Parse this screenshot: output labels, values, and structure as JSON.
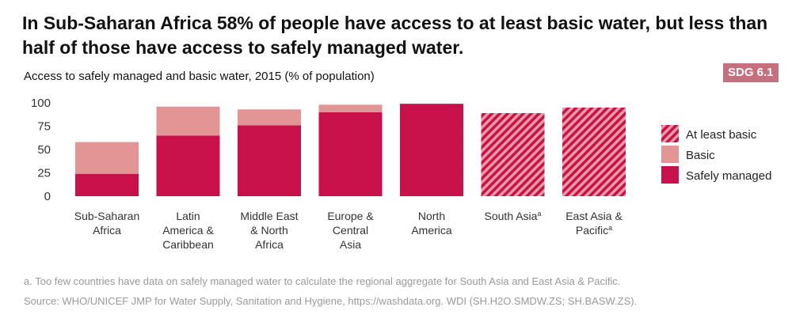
{
  "header": {
    "title": "In Sub-Saharan Africa 58% of people have access to at least basic water, but less than half of those have access to safely managed water.",
    "subtitle": "Access to safely managed and basic water, 2015 (% of population)",
    "badge": "SDG 6.1"
  },
  "footnotes": {
    "note_a": "a. Too few countries have data on safely managed water to calculate the regional aggregate for South Asia and East Asia & Pacific.",
    "source": "Source: WHO/UNICEF JMP for Water Supply, Sanitation and Hygiene, https://washdata.org. WDI (SH.H2O.SMDW.ZS; SH.BASW.ZS)."
  },
  "colors": {
    "safely_managed": "#c8114a",
    "basic": "#e39494",
    "hatch_light": "#e99aa3"
  },
  "chart_data": {
    "type": "bar",
    "stacked": true,
    "categories": [
      [
        "Sub-Saharan",
        "Africa"
      ],
      [
        "Latin",
        "America &",
        "Caribbean"
      ],
      [
        "Middle East",
        "& North",
        "Africa"
      ],
      [
        "Europe &",
        "Central",
        "Asia"
      ],
      [
        "North",
        "America"
      ],
      [
        "South Asia"
      ],
      [
        "East Asia &",
        "Pacific"
      ]
    ],
    "category_superscripts": [
      "",
      "",
      "",
      "",
      "",
      "a",
      "a"
    ],
    "series": [
      {
        "name": "Safely managed",
        "values": [
          24,
          65,
          76,
          90,
          99,
          null,
          null
        ]
      },
      {
        "name": "Basic",
        "values": [
          34,
          31,
          17,
          8,
          0,
          null,
          null
        ]
      },
      {
        "name": "At least basic",
        "values": [
          null,
          null,
          null,
          null,
          null,
          89,
          95
        ]
      }
    ],
    "legend_order": [
      "At least basic",
      "Basic",
      "Safely managed"
    ],
    "legend_position": "right",
    "yticks": [
      0,
      25,
      50,
      75,
      100
    ],
    "ylim": [
      0,
      100
    ],
    "grid": false
  }
}
